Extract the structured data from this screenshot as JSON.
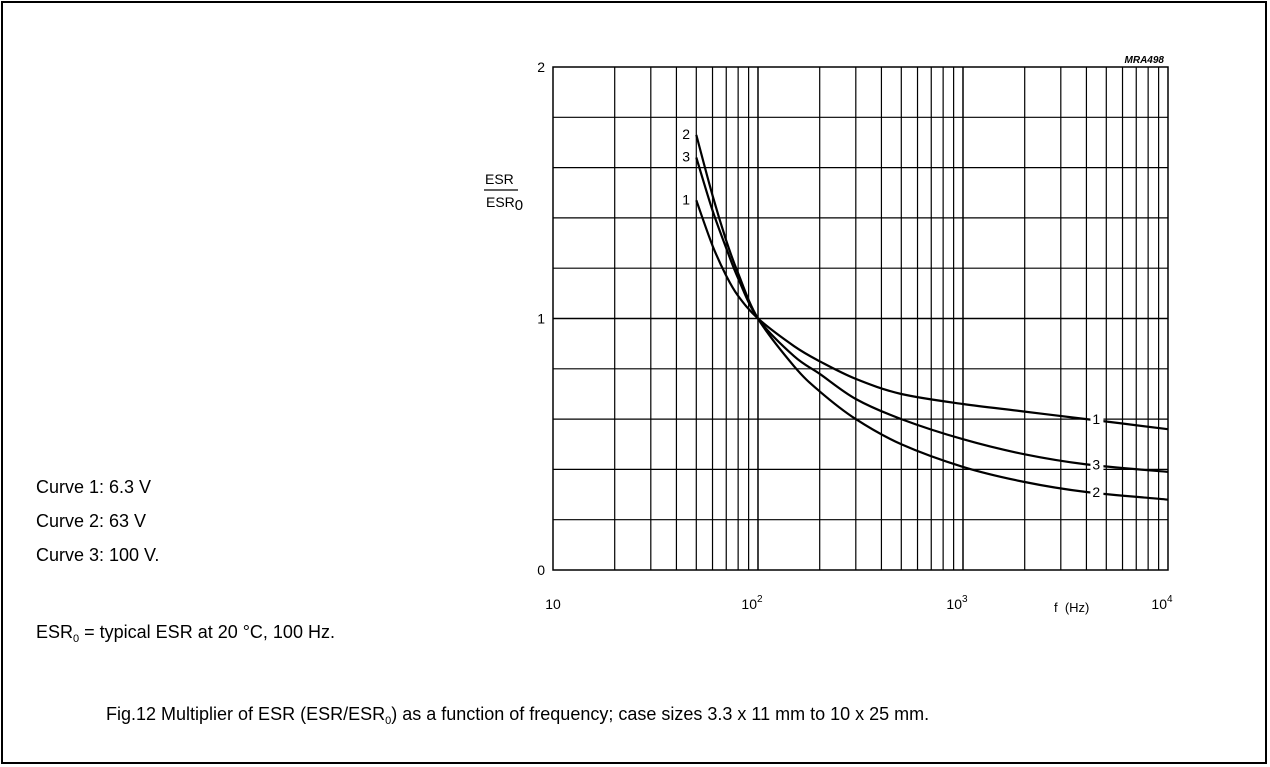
{
  "chart_data": {
    "type": "line",
    "code": "MRA498",
    "x_scale": "log",
    "xlim": [
      10,
      10000
    ],
    "ylim": [
      0,
      2
    ],
    "grid": true,
    "ylabel": {
      "numerator": "ESR",
      "denominator": "ESR",
      "denominator_sub": "0"
    },
    "xlabel": "f  (Hz)",
    "y_ticks": [
      {
        "value": 0,
        "label": "0"
      },
      {
        "value": 1,
        "label": "1"
      },
      {
        "value": 2,
        "label": "2"
      }
    ],
    "x_ticks": [
      {
        "value": 10,
        "base": "10",
        "exp": ""
      },
      {
        "value": 100,
        "base": "10",
        "exp": "2"
      },
      {
        "value": 1000,
        "base": "10",
        "exp": "3"
      },
      {
        "value": 10000,
        "base": "10",
        "exp": "4"
      }
    ],
    "series": [
      {
        "name": "1",
        "start_label": "1",
        "end_label": "1",
        "points": [
          [
            50,
            1.47
          ],
          [
            60,
            1.29
          ],
          [
            70,
            1.17
          ],
          [
            80,
            1.09
          ],
          [
            100,
            1.0
          ],
          [
            150,
            0.89
          ],
          [
            200,
            0.83
          ],
          [
            300,
            0.76
          ],
          [
            500,
            0.7
          ],
          [
            1000,
            0.66
          ],
          [
            2000,
            0.63
          ],
          [
            4000,
            0.6
          ],
          [
            10000,
            0.56
          ]
        ]
      },
      {
        "name": "2",
        "start_label": "2",
        "end_label": "2",
        "points": [
          [
            50,
            1.73
          ],
          [
            60,
            1.49
          ],
          [
            70,
            1.31
          ],
          [
            80,
            1.18
          ],
          [
            100,
            1.0
          ],
          [
            150,
            0.81
          ],
          [
            200,
            0.71
          ],
          [
            300,
            0.6
          ],
          [
            500,
            0.5
          ],
          [
            1000,
            0.41
          ],
          [
            2000,
            0.35
          ],
          [
            4000,
            0.31
          ],
          [
            10000,
            0.28
          ]
        ]
      },
      {
        "name": "3",
        "start_label": "3",
        "end_label": "3",
        "points": [
          [
            50,
            1.64
          ],
          [
            60,
            1.43
          ],
          [
            70,
            1.28
          ],
          [
            80,
            1.16
          ],
          [
            100,
            1.0
          ],
          [
            150,
            0.85
          ],
          [
            200,
            0.78
          ],
          [
            300,
            0.68
          ],
          [
            500,
            0.6
          ],
          [
            1000,
            0.52
          ],
          [
            2000,
            0.46
          ],
          [
            4000,
            0.42
          ],
          [
            10000,
            0.39
          ]
        ]
      }
    ]
  },
  "legend": [
    {
      "text": "Curve 1: 6.3 V"
    },
    {
      "text": "Curve 2: 63 V"
    },
    {
      "text": "Curve 3: 100 V."
    }
  ],
  "note": {
    "lead": "ESR",
    "sub": "0",
    "rest": " = typical ESR at 20 °C, 100 Hz."
  },
  "caption": {
    "before": "Fig.12  Multiplier of ESR (ESR/ESR",
    "sub": "0",
    "after": ") as a function of frequency; case sizes 3.3 x 11 mm to 10 x 25 mm."
  }
}
